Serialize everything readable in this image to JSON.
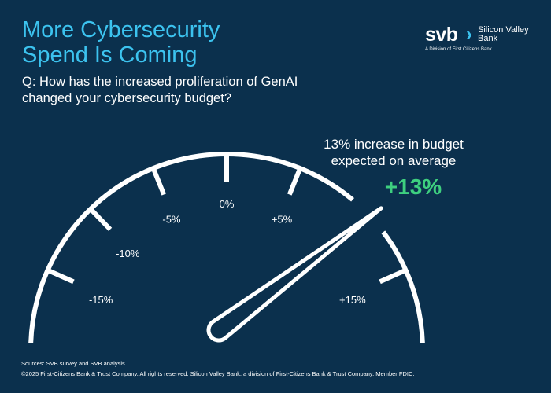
{
  "header": {
    "title_line1": "More Cybersecurity",
    "title_line2": "Spend Is Coming",
    "question_line1": "Q: How has the increased proliferation of GenAI",
    "question_line2": "changed your cybersecurity budget?"
  },
  "logo": {
    "mark": "svb",
    "chevron": "›",
    "name_line1": "Silicon Valley",
    "name_line2": "Bank",
    "division": "A Division of First Citizens Bank"
  },
  "callout": {
    "line1": "13% increase in budget",
    "line2": "expected on average",
    "value_label": "+13%"
  },
  "footer": {
    "sources": "Sources: SVB survey and SVB analysis.",
    "copyright": "©2025 First-Citizens Bank & Trust Company. All rights reserved. Silicon Valley Bank, a division of First-Citizens Bank & Trust Company. Member FDIC."
  },
  "colors": {
    "background": "#0b304d",
    "title": "#3cc3ef",
    "highlight": "#3ecf7f",
    "gauge": "#ffffff"
  },
  "chart_data": {
    "type": "gauge",
    "value": 13,
    "ticks": [
      -15,
      -10,
      -5,
      0,
      5,
      15
    ],
    "tick_labels": [
      "-15%",
      "-10%",
      "-5%",
      "0%",
      "+5%",
      "+15%"
    ],
    "range": [
      -15,
      15
    ]
  }
}
